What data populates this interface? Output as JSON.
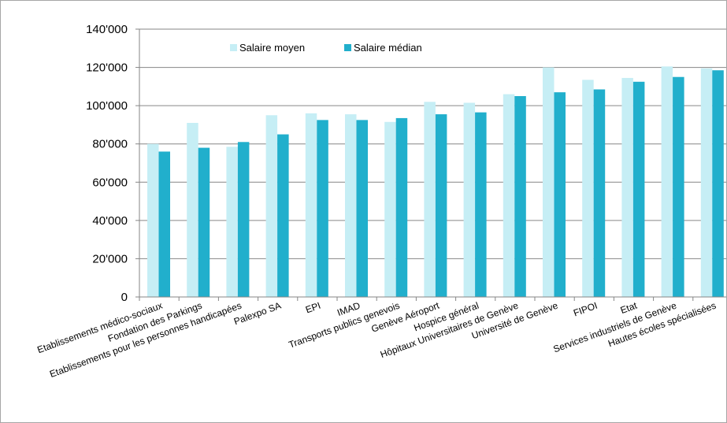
{
  "colors": {
    "series_mean": "#c6eef5",
    "series_median": "#21afcc",
    "gridline": "#868686",
    "axis": "#868686"
  },
  "chart_data": {
    "type": "bar",
    "title": "",
    "xlabel": "",
    "ylabel": "",
    "ylim": [
      0,
      140000
    ],
    "yticks": [
      0,
      20000,
      40000,
      60000,
      80000,
      100000,
      120000,
      140000
    ],
    "ytick_labels": [
      "0",
      "20'000",
      "40'000",
      "60'000",
      "80'000",
      "100'000",
      "120'000",
      "140'000"
    ],
    "grid": true,
    "legend_position": "top-left",
    "categories": [
      "Etablissements médico-sociaux",
      "Fondation des Parkings",
      "Etablissements pour les personnes handicapées",
      "Palexpo SA",
      "EPI",
      "IMAD",
      "Transports publics genevois",
      "Genève Aéroport",
      "Hospice général",
      "Hôpitaux Universitaires de Genève",
      "Université de Genève",
      "FIPOI",
      "Etat",
      "Services industriels de Genève",
      "Hautes écoles spécialisées"
    ],
    "series": [
      {
        "name": "Salaire moyen",
        "values": [
          80000,
          91000,
          78500,
          95000,
          96000,
          95500,
          91500,
          102000,
          101500,
          106000,
          120000,
          113500,
          114500,
          120500,
          119500
        ]
      },
      {
        "name": "Salaire médian",
        "values": [
          76000,
          78000,
          81000,
          85000,
          92500,
          92500,
          93500,
          95500,
          96500,
          105000,
          107000,
          108500,
          112500,
          115000,
          118500
        ]
      }
    ]
  }
}
